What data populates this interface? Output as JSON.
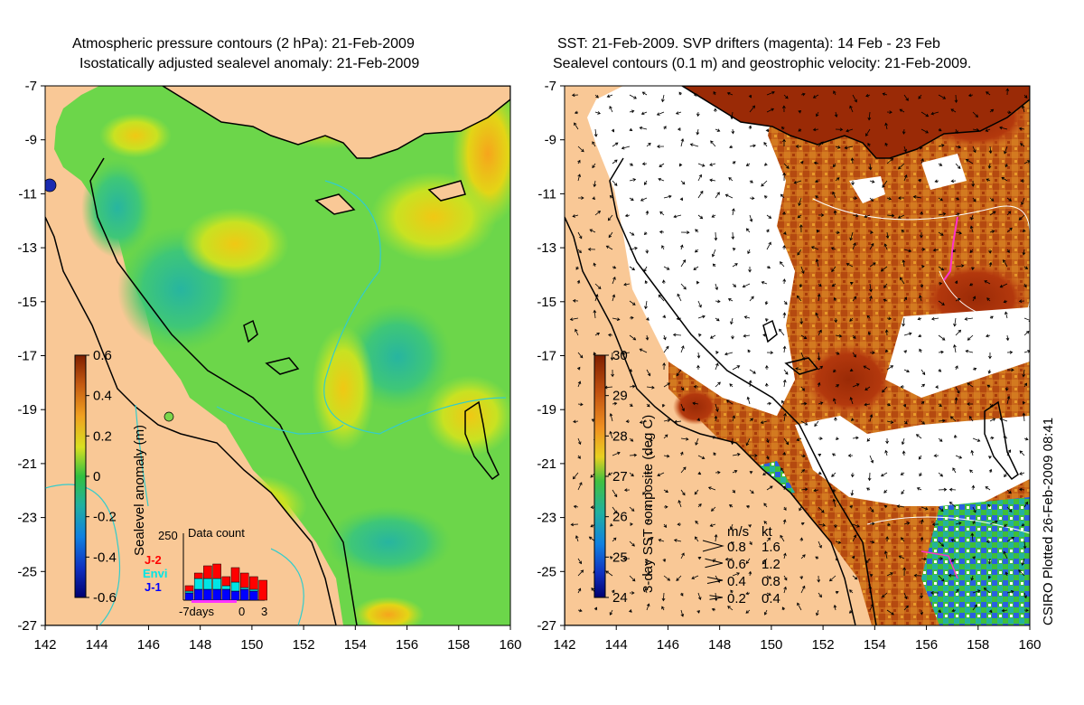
{
  "left_panel": {
    "title_line1": "Atmospheric pressure contours (2 hPa): 21-Feb-2009",
    "title_line2": "Isostatically adjusted sealevel anomaly: 21-Feb-2009",
    "colorbar_label": "Sealevel anomaly (m)",
    "colorbar_ticks": [
      "0.6",
      "0.4",
      "0.2",
      "0",
      "-0.2",
      "-0.4",
      "-0.6"
    ],
    "data_count": {
      "title": "Data count",
      "max_label": "250",
      "legend": [
        {
          "label": "J-2",
          "color": "#ff0000"
        },
        {
          "label": "Envi",
          "color": "#00e5e5"
        },
        {
          "label": "J-1",
          "color": "#0000ff"
        }
      ],
      "x_labels": [
        "-7days",
        "0",
        "3"
      ]
    }
  },
  "right_panel": {
    "title_line1": "SST: 21-Feb-2009. SVP drifters (magenta): 14 Feb - 23 Feb",
    "title_line2": "Sealevel contours (0.1 m) and geostrophic velocity: 21-Feb-2009.",
    "colorbar_label": "3-day SST composite (deg C)",
    "colorbar_ticks": [
      "30",
      "29",
      "28",
      "27",
      "26",
      "25",
      "24"
    ],
    "velocity_legend": {
      "header_ms": "m/s",
      "header_kt": "kt",
      "rows": [
        {
          "ms": "0.8",
          "kt": "1.6"
        },
        {
          "ms": "0.6",
          "kt": "1.2"
        },
        {
          "ms": "0.4",
          "kt": "0.8"
        },
        {
          "ms": "0.2",
          "kt": "0.4"
        }
      ]
    }
  },
  "axes": {
    "lat_ticks": [
      "-7",
      "-9",
      "-11",
      "-13",
      "-15",
      "-17",
      "-19",
      "-21",
      "-23",
      "-25",
      "-27"
    ],
    "lon_ticks": [
      "142",
      "144",
      "146",
      "148",
      "150",
      "152",
      "154",
      "156",
      "158",
      "160"
    ]
  },
  "credit": "CSIRO Plotted 26-Feb-2009 08:41",
  "colors": {
    "land": "#f9c896",
    "ocean_mid": "#66d54a",
    "sst_white": "#ffffff",
    "coast": "#000000",
    "bathy": "#33cccc"
  }
}
